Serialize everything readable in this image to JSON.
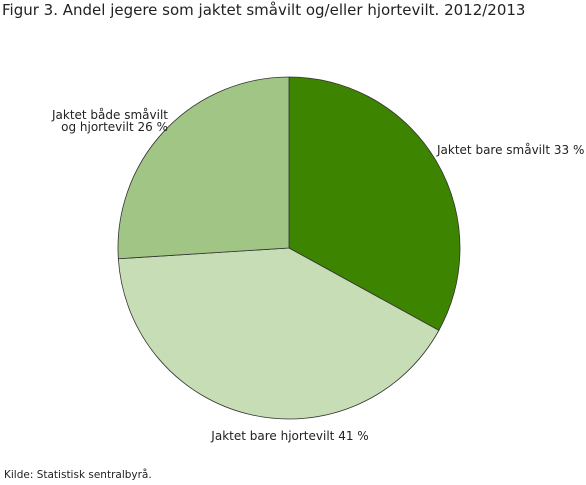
{
  "chart_data": {
    "type": "pie",
    "title": "Figur 3. Andel jegere som jaktet småvilt og/eller hjortevilt. 2012/2013",
    "categories": [
      "Jaktet bare småvilt",
      "Jaktet bare hjortevilt",
      "Jaktet både småvilt og hjortevilt"
    ],
    "values": [
      33,
      41,
      26
    ],
    "value_labels": [
      "33 %",
      "41 %",
      "26 %"
    ],
    "colors": [
      "#3d8500",
      "#c7ddb5",
      "#a0c585"
    ],
    "source": "Kilde: Statistisk sentralbyrå."
  }
}
